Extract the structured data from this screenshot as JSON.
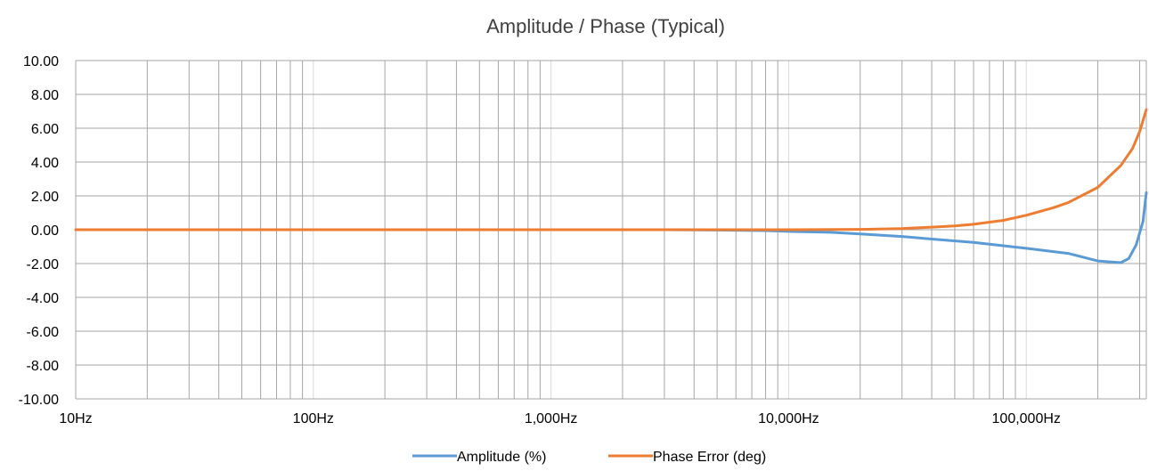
{
  "chart_data": {
    "type": "line",
    "title": "Amplitude / Phase (Typical)",
    "xlabel": "",
    "ylabel": "",
    "x_scale": "log",
    "xlim": [
      10,
      320000
    ],
    "ylim": [
      -10,
      10
    ],
    "grid": true,
    "legend_position": "bottom",
    "x_tick_values": [
      10,
      100,
      1000,
      10000,
      100000
    ],
    "x_tick_labels": [
      "10Hz",
      "100Hz",
      "1,000Hz",
      "10,000Hz",
      "100,000Hz"
    ],
    "y_tick_values": [
      10,
      8,
      6,
      4,
      2,
      0,
      -2,
      -4,
      -6,
      -8,
      -10
    ],
    "y_tick_labels": [
      "10.00",
      "8.00",
      "6.00",
      "4.00",
      "2.00",
      "0.00",
      "-2.00",
      "-4.00",
      "-6.00",
      "-8.00",
      "-10.00"
    ],
    "series": [
      {
        "name": "Amplitude (%)",
        "color": "#5B9BD5",
        "points": [
          [
            10,
            0
          ],
          [
            100,
            0
          ],
          [
            1000,
            0
          ],
          [
            3000,
            0
          ],
          [
            5000,
            -0.02
          ],
          [
            8000,
            -0.05
          ],
          [
            10000,
            -0.1
          ],
          [
            15000,
            -0.15
          ],
          [
            20000,
            -0.25
          ],
          [
            30000,
            -0.4
          ],
          [
            40000,
            -0.55
          ],
          [
            60000,
            -0.75
          ],
          [
            80000,
            -0.95
          ],
          [
            100000,
            -1.1
          ],
          [
            150000,
            -1.4
          ],
          [
            200000,
            -1.85
          ],
          [
            250000,
            -1.95
          ],
          [
            270000,
            -1.7
          ],
          [
            290000,
            -0.9
          ],
          [
            310000,
            0.5
          ],
          [
            320000,
            2.2
          ]
        ]
      },
      {
        "name": "Phase Error (deg)",
        "color": "#ED7D31",
        "points": [
          [
            10,
            0
          ],
          [
            100,
            0
          ],
          [
            1000,
            0
          ],
          [
            10000,
            0
          ],
          [
            20000,
            0.02
          ],
          [
            30000,
            0.07
          ],
          [
            40000,
            0.15
          ],
          [
            50000,
            0.22
          ],
          [
            60000,
            0.32
          ],
          [
            80000,
            0.55
          ],
          [
            100000,
            0.85
          ],
          [
            130000,
            1.3
          ],
          [
            150000,
            1.6
          ],
          [
            200000,
            2.5
          ],
          [
            250000,
            3.8
          ],
          [
            280000,
            4.8
          ],
          [
            300000,
            5.8
          ],
          [
            320000,
            7.1
          ]
        ]
      }
    ]
  }
}
